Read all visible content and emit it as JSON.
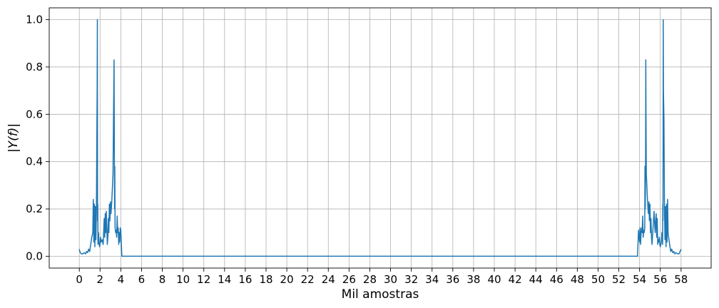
{
  "chart_data": {
    "type": "line",
    "title": "",
    "xlabel": "Mil amostras",
    "ylabel": "|Y(f)|",
    "xlim": [
      -2.9,
      60.9
    ],
    "ylim": [
      -0.05,
      1.05
    ],
    "grid": true,
    "x_ticks": [
      0,
      2,
      4,
      6,
      8,
      10,
      12,
      14,
      16,
      18,
      20,
      22,
      24,
      26,
      28,
      30,
      32,
      34,
      36,
      38,
      40,
      42,
      44,
      46,
      48,
      50,
      52,
      54,
      56,
      58
    ],
    "y_ticks": [
      0.0,
      0.2,
      0.4,
      0.6,
      0.8,
      1.0
    ],
    "y_tick_labels": [
      "0.0",
      "0.2",
      "0.4",
      "0.6",
      "0.8",
      "1.0"
    ],
    "series": [
      {
        "name": "",
        "color": "#1f77b4",
        "x": [
          0.0,
          0.05,
          0.1,
          0.2,
          0.3,
          0.4,
          0.5,
          0.6,
          0.7,
          0.8,
          0.9,
          1.0,
          1.1,
          1.2,
          1.3,
          1.35,
          1.4,
          1.45,
          1.5,
          1.55,
          1.6,
          1.65,
          1.7,
          1.72,
          1.74,
          1.76,
          1.78,
          1.8,
          1.82,
          1.85,
          1.9,
          1.95,
          2.0,
          2.05,
          2.1,
          2.2,
          2.3,
          2.4,
          2.45,
          2.5,
          2.55,
          2.6,
          2.65,
          2.7,
          2.75,
          2.8,
          2.85,
          2.9,
          2.95,
          3.0,
          3.05,
          3.1,
          3.15,
          3.2,
          3.25,
          3.3,
          3.35,
          3.38,
          3.4,
          3.42,
          3.45,
          3.5,
          3.55,
          3.6,
          3.65,
          3.7,
          3.75,
          3.8,
          3.85,
          3.9,
          3.95,
          4.0,
          4.1,
          4.2,
          10.0,
          20.0,
          30.0,
          40.0,
          50.0,
          53.8,
          53.9,
          54.0,
          54.05,
          54.1,
          54.15,
          54.2,
          54.25,
          54.3,
          54.35,
          54.4,
          54.45,
          54.5,
          54.52,
          54.55,
          54.58,
          54.6,
          54.62,
          54.65,
          54.7,
          54.75,
          54.8,
          54.85,
          54.9,
          54.95,
          55.0,
          55.05,
          55.1,
          55.15,
          55.2,
          55.3,
          55.4,
          55.5,
          55.6,
          55.65,
          55.7,
          55.75,
          55.8,
          55.85,
          55.9,
          55.95,
          56.0,
          56.1,
          56.15,
          56.2,
          56.22,
          56.24,
          56.26,
          56.28,
          56.3,
          56.35,
          56.4,
          56.45,
          56.5,
          56.55,
          56.6,
          56.65,
          56.7,
          56.75,
          56.8,
          56.9,
          57.0,
          57.1,
          57.2,
          57.3,
          57.4,
          57.5,
          57.6,
          57.7,
          57.8,
          57.85,
          57.9,
          58.0
        ],
        "y": [
          0.03,
          0.02,
          0.015,
          0.01,
          0.01,
          0.012,
          0.015,
          0.01,
          0.02,
          0.015,
          0.03,
          0.02,
          0.05,
          0.08,
          0.1,
          0.24,
          0.06,
          0.22,
          0.04,
          0.21,
          0.07,
          0.2,
          0.58,
          0.7,
          1.0,
          0.15,
          0.22,
          0.05,
          0.08,
          0.1,
          0.06,
          0.04,
          0.05,
          0.08,
          0.06,
          0.07,
          0.05,
          0.16,
          0.08,
          0.18,
          0.1,
          0.19,
          0.12,
          0.05,
          0.08,
          0.16,
          0.1,
          0.22,
          0.15,
          0.23,
          0.18,
          0.21,
          0.25,
          0.3,
          0.35,
          0.6,
          0.83,
          0.4,
          0.2,
          0.38,
          0.12,
          0.1,
          0.11,
          0.08,
          0.17,
          0.1,
          0.12,
          0.05,
          0.1,
          0.06,
          0.12,
          0.11,
          0.0,
          0.0,
          0.0,
          0.0,
          0.0,
          0.0,
          0.0,
          0.0,
          0.11,
          0.06,
          0.12,
          0.05,
          0.1,
          0.12,
          0.1,
          0.17,
          0.08,
          0.11,
          0.1,
          0.12,
          0.38,
          0.2,
          0.4,
          0.83,
          0.6,
          0.35,
          0.3,
          0.25,
          0.21,
          0.18,
          0.23,
          0.15,
          0.22,
          0.1,
          0.16,
          0.08,
          0.05,
          0.12,
          0.19,
          0.1,
          0.18,
          0.08,
          0.16,
          0.05,
          0.07,
          0.06,
          0.08,
          0.05,
          0.04,
          0.06,
          0.1,
          0.08,
          0.05,
          0.22,
          0.15,
          1.0,
          0.7,
          0.58,
          0.2,
          0.07,
          0.21,
          0.04,
          0.22,
          0.06,
          0.24,
          0.1,
          0.08,
          0.05,
          0.02,
          0.03,
          0.015,
          0.02,
          0.01,
          0.015,
          0.012,
          0.01,
          0.01,
          0.015,
          0.02,
          0.03
        ]
      }
    ]
  }
}
